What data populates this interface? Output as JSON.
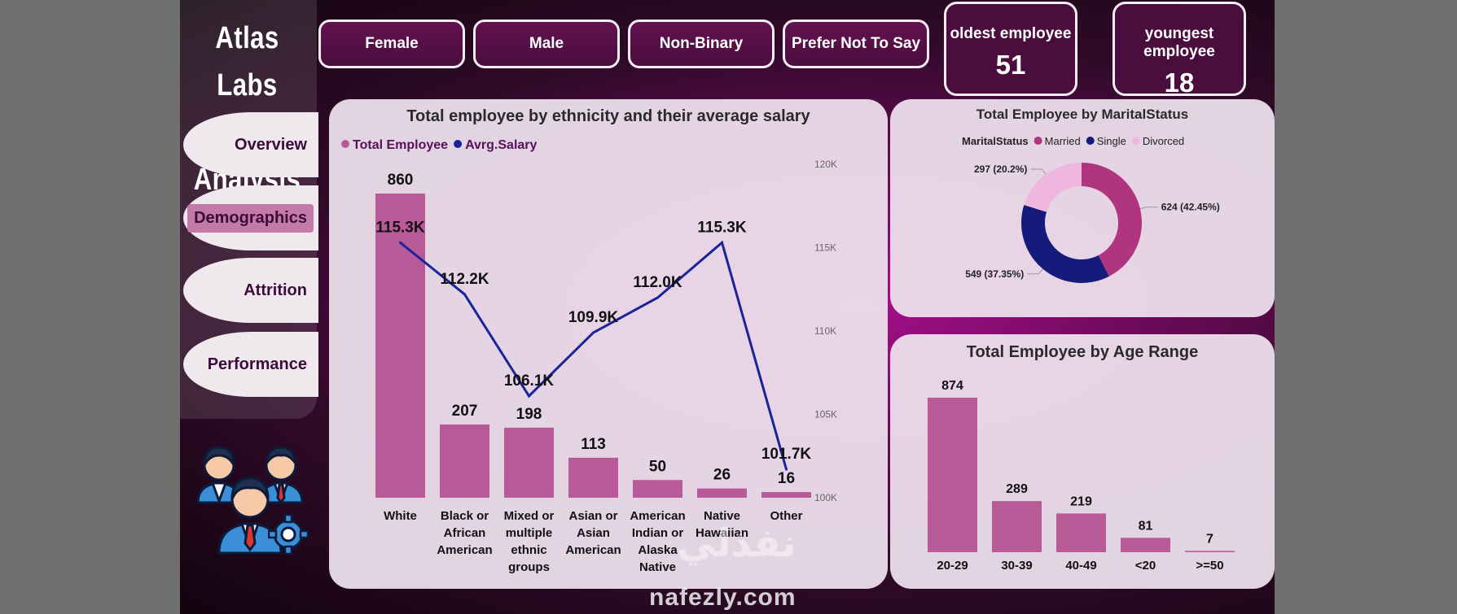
{
  "app": {
    "title_line1": "Atlas Labs",
    "title_line2": "HR Analysis"
  },
  "nav": [
    {
      "label": "Overview",
      "active": false
    },
    {
      "label": "Demographics",
      "active": true
    },
    {
      "label": "Attrition",
      "active": false
    },
    {
      "label": "Performance",
      "active": false
    }
  ],
  "filters": [
    "Female",
    "Male",
    "Non-Binary",
    "Prefer Not To Say"
  ],
  "kpis": [
    {
      "label": "oldest employee",
      "value": "51"
    },
    {
      "label": "youngest employee",
      "value": "18"
    }
  ],
  "colors": {
    "bar": "#b85a97",
    "line": "#1a2499",
    "married": "#b0357f",
    "single": "#151b7a",
    "divorced": "#efb7dd"
  },
  "icons": [
    "team-people-icon",
    "gear-icon"
  ],
  "watermark": {
    "arabic": "نفذلي",
    "domain": "nafezly.com"
  },
  "chart_data": [
    {
      "type": "bar",
      "title": "Total employee by ethnicity and their average salary",
      "legend": [
        "Total Employee",
        "Avrg.Salary"
      ],
      "legend_position": "top-left",
      "categories": [
        [
          "White"
        ],
        [
          "Black or",
          "African",
          "American"
        ],
        [
          "Mixed or",
          "multiple",
          "ethnic",
          "groups"
        ],
        [
          "Asian or",
          "Asian",
          "American"
        ],
        [
          "American",
          "Indian or",
          "Alaska",
          "Native"
        ],
        [
          "Native",
          "Hawaiian"
        ],
        [
          "Other"
        ]
      ],
      "series": [
        {
          "name": "Total Employee",
          "type": "bar",
          "values": [
            860,
            207,
            198,
            113,
            50,
            26,
            16
          ],
          "labels": [
            "860",
            "207",
            "198",
            "113",
            "50",
            "26",
            "16"
          ]
        },
        {
          "name": "Avrg.Salary",
          "type": "line",
          "values": [
            115300,
            112200,
            106100,
            109900,
            112000,
            115300,
            101700
          ],
          "labels": [
            "115.3K",
            "112.2K",
            "106.1K",
            "109.9K",
            "112.0K",
            "115.3K",
            "101.7K"
          ]
        }
      ],
      "y_left_lim": [
        0,
        860
      ],
      "y_right_lim": [
        100000,
        120000
      ],
      "y_right_ticks": [
        {
          "v": 120000,
          "label": "120K"
        },
        {
          "v": 115000,
          "label": "115K"
        },
        {
          "v": 110000,
          "label": "110K"
        },
        {
          "v": 105000,
          "label": "105K"
        },
        {
          "v": 100000,
          "label": "100K"
        }
      ],
      "grid": false
    },
    {
      "type": "pie",
      "title": "Total Employee by MaritalStatus",
      "legend_title": "MaritalStatus",
      "legend_position": "top",
      "slices": [
        {
          "name": "Married",
          "value": 624,
          "label": "624 (42.45%)"
        },
        {
          "name": "Single",
          "value": 549,
          "label": "549 (37.35%)"
        },
        {
          "name": "Divorced",
          "value": 297,
          "label": "297 (20.2%)"
        }
      ]
    },
    {
      "type": "bar",
      "title": "Total Employee by Age Range",
      "categories": [
        "20-29",
        "30-39",
        "40-49",
        "<20",
        ">=50"
      ],
      "values": [
        874,
        289,
        219,
        81,
        7
      ],
      "ylim": [
        0,
        874
      ],
      "grid": false
    }
  ]
}
